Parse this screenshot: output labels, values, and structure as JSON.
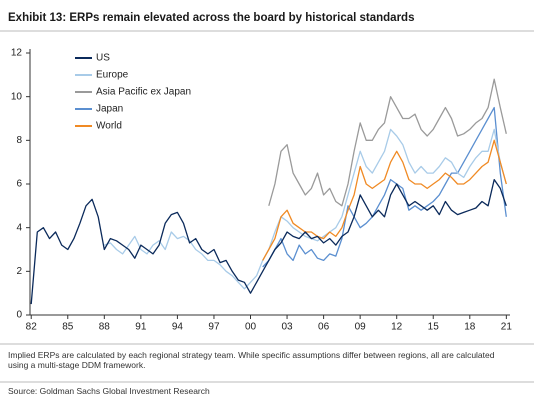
{
  "chart_data": {
    "type": "line",
    "title": "Exhibit 13: ERPs remain elevated across the board by historical standards",
    "note": "Implied ERPs are calculated by each regional strategy team. While specific assumptions differ between regions, all are calculated using a multi-stage DDM framework.",
    "source": "Source: Goldman Sachs Global Investment Research",
    "x": [
      1982,
      1982.5,
      1983,
      1983.5,
      1984,
      1984.5,
      1985,
      1985.5,
      1986,
      1986.5,
      1987,
      1987.5,
      1988,
      1988.5,
      1989,
      1989.5,
      1990,
      1990.5,
      1991,
      1991.5,
      1992,
      1992.5,
      1993,
      1993.5,
      1994,
      1994.5,
      1995,
      1995.5,
      1996,
      1996.5,
      1997,
      1997.5,
      1998,
      1998.5,
      1999,
      1999.5,
      2000,
      2000.5,
      2001,
      2001.5,
      2002,
      2002.5,
      2003,
      2003.5,
      2004,
      2004.5,
      2005,
      2005.5,
      2006,
      2006.5,
      2007,
      2007.5,
      2008,
      2008.5,
      2009,
      2009.5,
      2010,
      2010.5,
      2011,
      2011.5,
      2012,
      2012.5,
      2013,
      2013.5,
      2014,
      2014.5,
      2015,
      2015.5,
      2016,
      2016.5,
      2017,
      2017.5,
      2018,
      2018.5,
      2019,
      2019.5,
      2020,
      2020.5,
      2021
    ],
    "series": [
      {
        "name": "US",
        "color": "#0b2a5b",
        "values": [
          0.5,
          3.8,
          4.0,
          3.5,
          3.8,
          3.2,
          3.0,
          3.5,
          4.2,
          5.0,
          5.3,
          4.5,
          3.0,
          3.5,
          3.4,
          3.2,
          3.0,
          2.6,
          3.2,
          3.0,
          2.8,
          3.2,
          4.2,
          4.6,
          4.7,
          4.2,
          3.3,
          3.5,
          3.0,
          2.8,
          3.0,
          2.4,
          2.5,
          2.0,
          1.6,
          1.5,
          1.0,
          1.5,
          2.0,
          2.5,
          3.0,
          3.3,
          3.8,
          3.6,
          3.5,
          3.8,
          3.5,
          3.6,
          3.3,
          3.5,
          3.2,
          3.6,
          3.8,
          4.5,
          5.5,
          5.0,
          4.5,
          4.8,
          4.5,
          5.5,
          6.0,
          5.5,
          5.0,
          5.2,
          5.0,
          4.8,
          5.0,
          4.6,
          5.2,
          4.8,
          4.6,
          4.7,
          4.8,
          4.9,
          5.2,
          5.0,
          6.2,
          5.8,
          5.0
        ]
      },
      {
        "name": "Europe",
        "color": "#a8cbe8",
        "values": [
          null,
          null,
          null,
          null,
          null,
          null,
          null,
          null,
          null,
          null,
          null,
          null,
          3.2,
          3.3,
          3.0,
          2.8,
          3.2,
          3.6,
          3.0,
          2.8,
          3.2,
          3.4,
          3.0,
          3.8,
          3.5,
          3.6,
          3.4,
          3.0,
          2.8,
          2.5,
          2.5,
          2.3,
          2.0,
          1.8,
          1.5,
          1.2,
          1.5,
          1.8,
          2.5,
          3.0,
          3.8,
          4.5,
          4.3,
          4.0,
          3.8,
          3.6,
          3.5,
          3.4,
          3.6,
          3.8,
          4.0,
          4.5,
          5.5,
          6.5,
          7.5,
          6.8,
          6.5,
          7.0,
          7.5,
          8.5,
          8.2,
          7.8,
          7.0,
          6.5,
          6.8,
          6.5,
          6.5,
          6.8,
          7.2,
          7.0,
          6.5,
          6.3,
          6.8,
          7.2,
          7.5,
          7.5,
          8.5,
          7.0,
          6.0
        ]
      },
      {
        "name": "Asia Pacific ex Japan",
        "color": "#9a9a9a",
        "values": [
          null,
          null,
          null,
          null,
          null,
          null,
          null,
          null,
          null,
          null,
          null,
          null,
          null,
          null,
          null,
          null,
          null,
          null,
          null,
          null,
          null,
          null,
          null,
          null,
          null,
          null,
          null,
          null,
          null,
          null,
          null,
          null,
          null,
          null,
          null,
          null,
          null,
          null,
          null,
          5.0,
          6.0,
          7.5,
          7.8,
          6.5,
          6.0,
          5.5,
          5.8,
          6.5,
          5.5,
          5.8,
          5.2,
          5.0,
          6.0,
          7.5,
          8.8,
          8.0,
          8.0,
          8.5,
          8.8,
          10.0,
          9.5,
          9.0,
          9.0,
          9.2,
          8.5,
          8.2,
          8.5,
          9.0,
          9.5,
          9.0,
          8.2,
          8.3,
          8.5,
          8.8,
          9.0,
          9.5,
          10.8,
          9.5,
          8.3
        ]
      },
      {
        "name": "Japan",
        "color": "#5b8fd0",
        "values": [
          null,
          null,
          null,
          null,
          null,
          null,
          null,
          null,
          null,
          null,
          null,
          null,
          null,
          null,
          null,
          null,
          null,
          null,
          null,
          null,
          null,
          null,
          null,
          null,
          null,
          null,
          null,
          null,
          null,
          null,
          null,
          null,
          null,
          null,
          null,
          null,
          null,
          null,
          2.2,
          2.5,
          3.0,
          3.5,
          2.8,
          2.5,
          3.2,
          2.8,
          3.0,
          2.6,
          2.5,
          2.8,
          2.7,
          3.5,
          5.0,
          4.5,
          4.0,
          4.2,
          4.5,
          5.0,
          5.5,
          6.2,
          6.0,
          5.8,
          4.8,
          5.0,
          4.8,
          5.0,
          5.2,
          5.5,
          6.0,
          6.5,
          6.5,
          7.0,
          7.5,
          8.0,
          8.5,
          9.0,
          9.5,
          6.5,
          4.5
        ]
      },
      {
        "name": "World",
        "color": "#f08a24",
        "values": [
          null,
          null,
          null,
          null,
          null,
          null,
          null,
          null,
          null,
          null,
          null,
          null,
          null,
          null,
          null,
          null,
          null,
          null,
          null,
          null,
          null,
          null,
          null,
          null,
          null,
          null,
          null,
          null,
          null,
          null,
          null,
          null,
          null,
          null,
          null,
          null,
          null,
          null,
          2.5,
          3.0,
          3.5,
          4.5,
          4.8,
          4.2,
          4.0,
          3.8,
          3.8,
          3.6,
          3.5,
          3.8,
          3.6,
          4.0,
          4.8,
          5.5,
          6.8,
          6.0,
          5.8,
          6.0,
          6.2,
          7.0,
          7.5,
          7.0,
          6.2,
          6.0,
          6.0,
          5.8,
          6.0,
          6.2,
          6.5,
          6.3,
          6.0,
          6.0,
          6.2,
          6.5,
          6.8,
          7.0,
          8.0,
          7.0,
          6.0
        ]
      }
    ],
    "xlim": [
      1981.9,
      2021.3
    ],
    "xticks": [
      {
        "value": 1982,
        "label": "82"
      },
      {
        "value": 1985,
        "label": "85"
      },
      {
        "value": 1988,
        "label": "88"
      },
      {
        "value": 1991,
        "label": "91"
      },
      {
        "value": 1994,
        "label": "94"
      },
      {
        "value": 1997,
        "label": "97"
      },
      {
        "value": 2000,
        "label": "00"
      },
      {
        "value": 2003,
        "label": "03"
      },
      {
        "value": 2006,
        "label": "06"
      },
      {
        "value": 2009,
        "label": "09"
      },
      {
        "value": 2012,
        "label": "12"
      },
      {
        "value": 2015,
        "label": "15"
      },
      {
        "value": 2018,
        "label": "18"
      },
      {
        "value": 2021,
        "label": "21"
      }
    ],
    "ylim": [
      0,
      12
    ],
    "yticks": [
      0,
      2,
      4,
      6,
      8,
      10,
      12
    ],
    "grid": false,
    "legend": "top-left"
  }
}
